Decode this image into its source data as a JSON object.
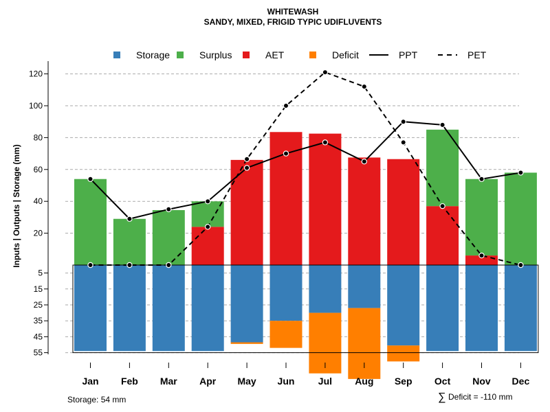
{
  "chart_data": {
    "type": "bar",
    "title": "WHITEWASH",
    "subtitle": "SANDY, MIXED, FRIGID TYPIC UDIFLUVENTS",
    "ylabel": "Inputs | Outputs | Storage    (mm)",
    "categories": [
      "Jan",
      "Feb",
      "Mar",
      "Apr",
      "May",
      "Jun",
      "Jul",
      "Aug",
      "Sep",
      "Oct",
      "Nov",
      "Dec"
    ],
    "upper_ylim": [
      0,
      128
    ],
    "upper_ticks": [
      20,
      40,
      60,
      80,
      100,
      120
    ],
    "lower_ylim": [
      0,
      55
    ],
    "lower_ticks": [
      5,
      15,
      25,
      35,
      45,
      55
    ],
    "legend": {
      "placement": "top",
      "entries": [
        {
          "label": "Storage",
          "color": "#377eb8",
          "kind": "box"
        },
        {
          "label": "Surplus",
          "color": "#4daf4a",
          "kind": "box"
        },
        {
          "label": "AET",
          "color": "#e41a1c",
          "kind": "box"
        },
        {
          "label": "Deficit",
          "color": "#ff7f00",
          "kind": "box"
        },
        {
          "label": "PPT",
          "color": "#000000",
          "kind": "solid"
        },
        {
          "label": "PET",
          "color": "#000000",
          "kind": "dashed"
        }
      ]
    },
    "series": [
      {
        "name": "AET",
        "color": "#e41a1c",
        "values": [
          0,
          0,
          0,
          24,
          66,
          83.5,
          82.5,
          67.5,
          66.5,
          37,
          6,
          0
        ]
      },
      {
        "name": "Surplus",
        "color": "#4daf4a",
        "values": [
          54,
          29,
          34.5,
          16,
          0,
          0,
          0,
          0,
          0,
          48,
          48,
          58
        ]
      },
      {
        "name": "Storage",
        "color": "#377eb8",
        "values": [
          54,
          54,
          54,
          54,
          48.5,
          35,
          30,
          27,
          50.5,
          54,
          54,
          54
        ]
      },
      {
        "name": "Deficit",
        "color": "#ff7f00",
        "values": [
          0,
          0,
          0,
          0,
          1,
          17,
          38,
          44.5,
          10,
          0,
          0,
          0
        ]
      },
      {
        "name": "PPT",
        "color": "#000000",
        "values": [
          54,
          29,
          35,
          40,
          61,
          70,
          77,
          65,
          90,
          88,
          54,
          58
        ]
      },
      {
        "name": "PET",
        "color": "#000000",
        "values": [
          0,
          0,
          0,
          24,
          66.5,
          100,
          121,
          112,
          77,
          37,
          6,
          0
        ]
      }
    ],
    "footer": {
      "storage_text": "Storage: 54 mm",
      "deficit_symbol": "∑",
      "deficit_text": "Deficit = -110 mm"
    }
  }
}
